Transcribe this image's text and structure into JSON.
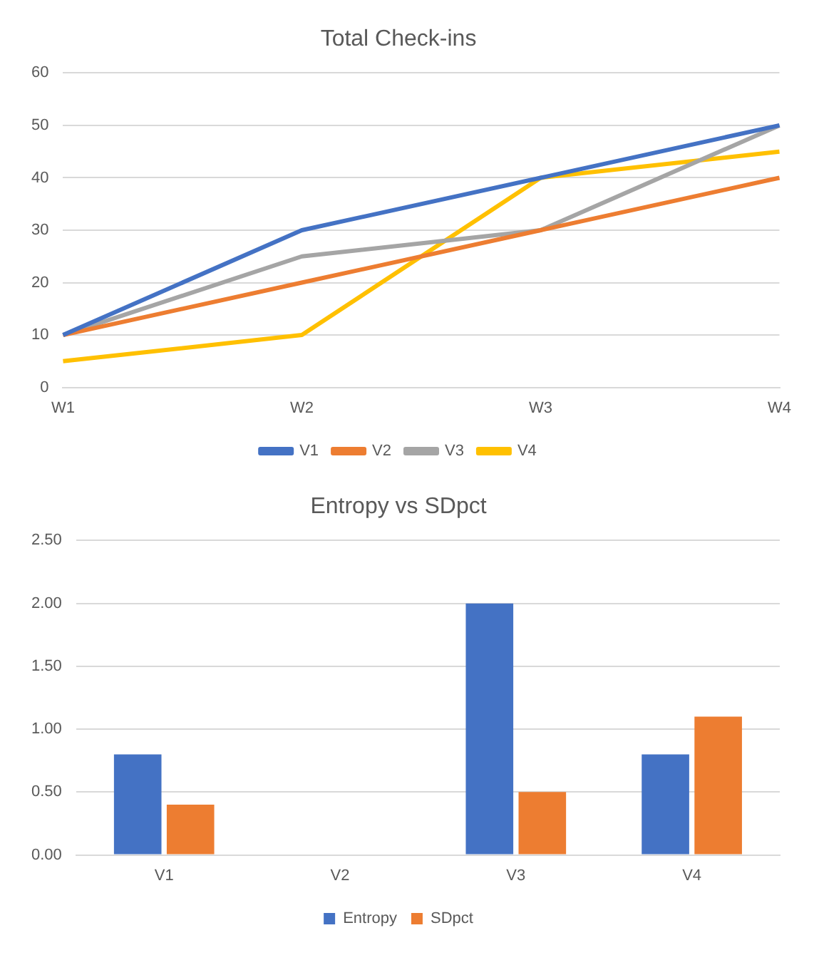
{
  "chart_data": [
    {
      "type": "line",
      "title": "Total Check-ins",
      "categories": [
        "W1",
        "W2",
        "W3",
        "W4"
      ],
      "series": [
        {
          "name": "V1",
          "color": "#4472c4",
          "values": [
            10,
            30,
            40,
            50
          ]
        },
        {
          "name": "V2",
          "color": "#ed7d31",
          "values": [
            10,
            20,
            30,
            40
          ]
        },
        {
          "name": "V3",
          "color": "#a5a5a5",
          "values": [
            10,
            25,
            30,
            50
          ]
        },
        {
          "name": "V4",
          "color": "#ffc000",
          "values": [
            5,
            10,
            40,
            45
          ]
        }
      ],
      "ylim": [
        0,
        60
      ],
      "yticks": [
        0,
        10,
        20,
        30,
        40,
        50,
        60
      ],
      "grid": "y",
      "legend": "bottom",
      "marker": "none",
      "line_style": "solid"
    },
    {
      "type": "bar",
      "title": "Entropy vs SDpct",
      "categories": [
        "V1",
        "V2",
        "V3",
        "V4"
      ],
      "series": [
        {
          "name": "Entropy",
          "color": "#4472c4",
          "values": [
            0.8,
            0,
            2.0,
            0.8
          ]
        },
        {
          "name": "SDpct",
          "color": "#ed7d31",
          "values": [
            0.4,
            0,
            0.5,
            1.1
          ]
        }
      ],
      "ylim": [
        0,
        2.5
      ],
      "yticks": [
        {
          "value": 0,
          "label": "0.00"
        },
        {
          "value": 0.5,
          "label": "0.50"
        },
        {
          "value": 1,
          "label": "1.00"
        },
        {
          "value": 1.5,
          "label": "1.50"
        },
        {
          "value": 2,
          "label": "2.00"
        },
        {
          "value": 2.5,
          "label": "2.50"
        }
      ],
      "grid": "y",
      "legend": "bottom"
    }
  ]
}
